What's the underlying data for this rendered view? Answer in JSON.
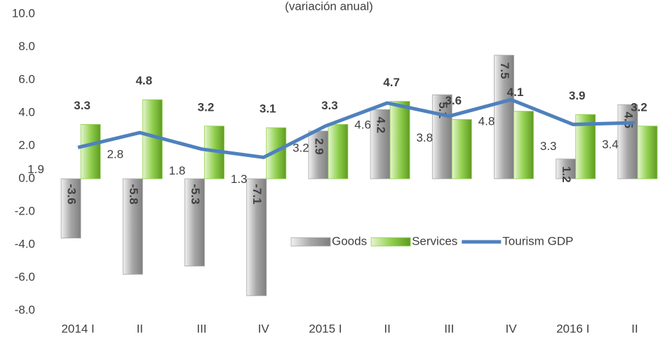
{
  "chart_data": {
    "type": "bar-line",
    "subtitle": "(variación anual)",
    "categories": [
      "2014 I",
      "II",
      "III",
      "IV",
      "2015 I",
      "II",
      "III",
      "IV",
      "2016 I",
      "II"
    ],
    "series": [
      {
        "name": "Goods",
        "type": "bar",
        "color": "#a6a6a6",
        "values": [
          -3.6,
          -5.8,
          -5.3,
          -7.1,
          2.9,
          4.2,
          5.1,
          7.5,
          1.2,
          4.5
        ]
      },
      {
        "name": "Services",
        "type": "bar",
        "color": "#92d050",
        "values": [
          3.3,
          4.8,
          3.2,
          3.1,
          3.3,
          4.7,
          3.6,
          4.1,
          3.9,
          3.2
        ]
      },
      {
        "name": "Tourism GDP",
        "type": "line",
        "color": "#4f81bd",
        "values": [
          1.9,
          2.8,
          1.8,
          1.3,
          3.2,
          4.6,
          3.8,
          4.8,
          3.3,
          3.4
        ]
      }
    ],
    "ylim": [
      -8,
      10
    ],
    "yticks": [
      {
        "value": -8,
        "label": "-8.0"
      },
      {
        "value": -6,
        "label": "-6.0"
      },
      {
        "value": -4,
        "label": "-4.0"
      },
      {
        "value": -2,
        "label": "-2.0"
      },
      {
        "value": 0,
        "label": "0.0"
      },
      {
        "value": 2,
        "label": "2.0"
      },
      {
        "value": 4,
        "label": "4.0"
      },
      {
        "value": 6,
        "label": "6.0"
      },
      {
        "value": 8,
        "label": "8.0"
      },
      {
        "value": 10,
        "label": "10.0"
      }
    ],
    "legend": "inside-lower-right"
  }
}
